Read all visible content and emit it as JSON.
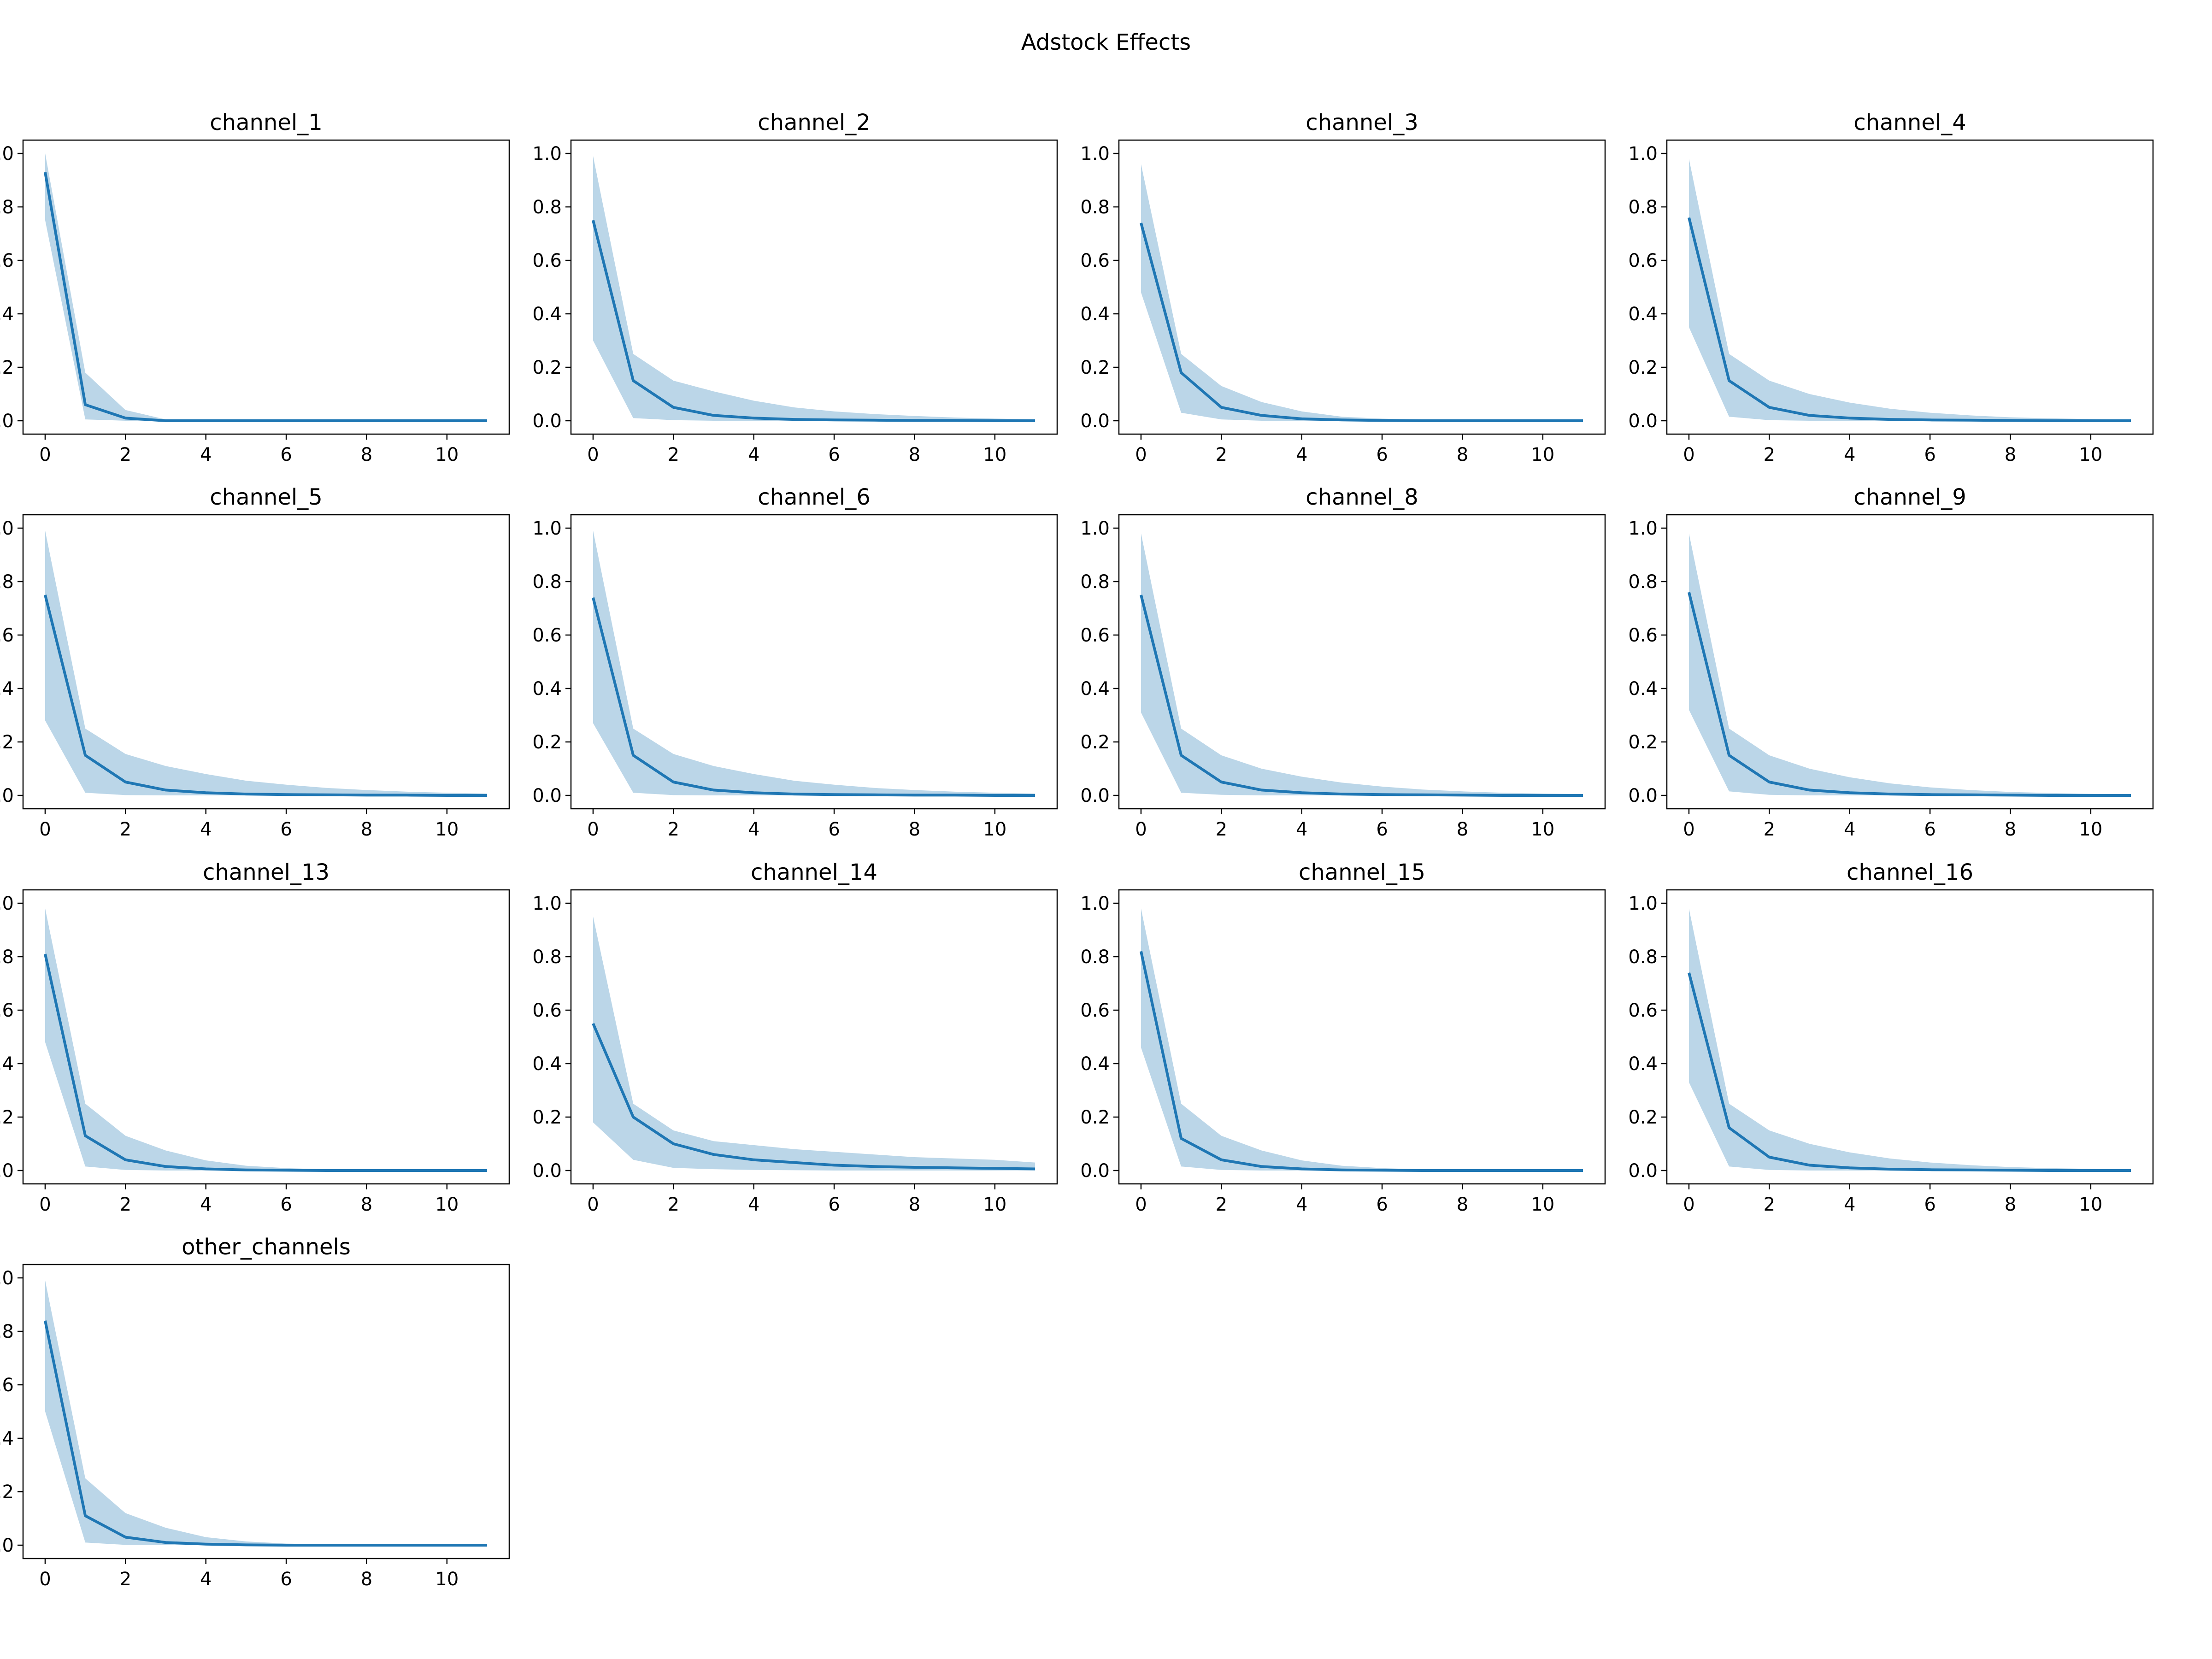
{
  "figure_title": "Adstock Effects",
  "colors": {
    "line": "#1f77b4",
    "band": "#1f77b4",
    "frame": "#000000"
  },
  "chart_data": {
    "type": "line",
    "x": [
      0,
      1,
      2,
      3,
      4,
      5,
      6,
      7,
      8,
      9,
      10,
      11
    ],
    "xticks": [
      0,
      2,
      4,
      6,
      8,
      10
    ],
    "yticks": [
      0.0,
      0.2,
      0.4,
      0.6,
      0.8,
      1.0
    ],
    "ytick_labels": [
      "0.0",
      "0.2",
      "0.4",
      "0.6",
      "0.8",
      "1.0"
    ],
    "xlim": [
      -0.55,
      11.55
    ],
    "ylim": [
      -0.05,
      1.05
    ],
    "grid": false,
    "panels": [
      {
        "title": "channel_1",
        "mean": [
          0.93,
          0.06,
          0.01,
          0.0,
          0.0,
          0.0,
          0.0,
          0.0,
          0.0,
          0.0,
          0.0,
          0.0
        ],
        "lower": [
          0.75,
          0.005,
          0.0,
          0.0,
          0.0,
          0.0,
          0.0,
          0.0,
          0.0,
          0.0,
          0.0,
          0.0
        ],
        "upper": [
          1.0,
          0.18,
          0.04,
          0.005,
          0.002,
          0.001,
          0.0,
          0.0,
          0.0,
          0.0,
          0.0,
          0.0
        ]
      },
      {
        "title": "channel_2",
        "mean": [
          0.75,
          0.15,
          0.05,
          0.02,
          0.01,
          0.005,
          0.003,
          0.002,
          0.001,
          0.001,
          0.0,
          0.0
        ],
        "lower": [
          0.3,
          0.01,
          0.002,
          0.0,
          0.0,
          0.0,
          0.0,
          0.0,
          0.0,
          0.0,
          0.0,
          0.0
        ],
        "upper": [
          0.99,
          0.25,
          0.15,
          0.11,
          0.075,
          0.05,
          0.035,
          0.025,
          0.018,
          0.012,
          0.008,
          0.005
        ]
      },
      {
        "title": "channel_3",
        "mean": [
          0.74,
          0.18,
          0.05,
          0.02,
          0.007,
          0.003,
          0.001,
          0.0,
          0.0,
          0.0,
          0.0,
          0.0
        ],
        "lower": [
          0.48,
          0.03,
          0.005,
          0.0,
          0.0,
          0.0,
          0.0,
          0.0,
          0.0,
          0.0,
          0.0,
          0.0
        ],
        "upper": [
          0.96,
          0.25,
          0.13,
          0.07,
          0.035,
          0.015,
          0.008,
          0.004,
          0.002,
          0.001,
          0.0,
          0.0
        ]
      },
      {
        "title": "channel_4",
        "mean": [
          0.76,
          0.15,
          0.05,
          0.02,
          0.01,
          0.005,
          0.003,
          0.002,
          0.001,
          0.0,
          0.0,
          0.0
        ],
        "lower": [
          0.35,
          0.015,
          0.002,
          0.0,
          0.0,
          0.0,
          0.0,
          0.0,
          0.0,
          0.0,
          0.0,
          0.0
        ],
        "upper": [
          0.98,
          0.25,
          0.15,
          0.1,
          0.068,
          0.045,
          0.03,
          0.02,
          0.013,
          0.009,
          0.006,
          0.004
        ]
      },
      {
        "title": "channel_5",
        "mean": [
          0.75,
          0.15,
          0.05,
          0.02,
          0.01,
          0.005,
          0.003,
          0.002,
          0.001,
          0.001,
          0.0,
          0.0
        ],
        "lower": [
          0.28,
          0.01,
          0.001,
          0.0,
          0.0,
          0.0,
          0.0,
          0.0,
          0.0,
          0.0,
          0.0,
          0.0
        ],
        "upper": [
          0.99,
          0.25,
          0.155,
          0.11,
          0.08,
          0.055,
          0.04,
          0.028,
          0.02,
          0.014,
          0.01,
          0.007
        ]
      },
      {
        "title": "channel_6",
        "mean": [
          0.74,
          0.15,
          0.05,
          0.02,
          0.01,
          0.005,
          0.003,
          0.002,
          0.001,
          0.001,
          0.0,
          0.0
        ],
        "lower": [
          0.27,
          0.01,
          0.001,
          0.0,
          0.0,
          0.0,
          0.0,
          0.0,
          0.0,
          0.0,
          0.0,
          0.0
        ],
        "upper": [
          0.99,
          0.25,
          0.155,
          0.11,
          0.08,
          0.055,
          0.04,
          0.028,
          0.02,
          0.014,
          0.01,
          0.007
        ]
      },
      {
        "title": "channel_8",
        "mean": [
          0.75,
          0.15,
          0.05,
          0.02,
          0.01,
          0.005,
          0.003,
          0.002,
          0.001,
          0.0,
          0.0,
          0.0
        ],
        "lower": [
          0.31,
          0.01,
          0.002,
          0.0,
          0.0,
          0.0,
          0.0,
          0.0,
          0.0,
          0.0,
          0.0,
          0.0
        ],
        "upper": [
          0.98,
          0.25,
          0.15,
          0.1,
          0.07,
          0.048,
          0.033,
          0.022,
          0.015,
          0.01,
          0.007,
          0.005
        ]
      },
      {
        "title": "channel_9",
        "mean": [
          0.76,
          0.15,
          0.05,
          0.02,
          0.01,
          0.005,
          0.003,
          0.002,
          0.001,
          0.0,
          0.0,
          0.0
        ],
        "lower": [
          0.32,
          0.015,
          0.002,
          0.0,
          0.0,
          0.0,
          0.0,
          0.0,
          0.0,
          0.0,
          0.0,
          0.0
        ],
        "upper": [
          0.98,
          0.25,
          0.15,
          0.1,
          0.068,
          0.045,
          0.03,
          0.02,
          0.013,
          0.009,
          0.006,
          0.004
        ]
      },
      {
        "title": "channel_13",
        "mean": [
          0.81,
          0.13,
          0.04,
          0.015,
          0.006,
          0.002,
          0.001,
          0.0,
          0.0,
          0.0,
          0.0,
          0.0
        ],
        "lower": [
          0.48,
          0.015,
          0.002,
          0.0,
          0.0,
          0.0,
          0.0,
          0.0,
          0.0,
          0.0,
          0.0,
          0.0
        ],
        "upper": [
          0.98,
          0.25,
          0.13,
          0.075,
          0.038,
          0.018,
          0.009,
          0.004,
          0.002,
          0.001,
          0.0,
          0.0
        ]
      },
      {
        "title": "channel_14",
        "mean": [
          0.55,
          0.2,
          0.1,
          0.06,
          0.04,
          0.03,
          0.02,
          0.015,
          0.012,
          0.01,
          0.008,
          0.006
        ],
        "lower": [
          0.18,
          0.04,
          0.01,
          0.005,
          0.002,
          0.001,
          0.0,
          0.0,
          0.0,
          0.0,
          0.0,
          0.0
        ],
        "upper": [
          0.95,
          0.25,
          0.15,
          0.11,
          0.095,
          0.08,
          0.07,
          0.06,
          0.05,
          0.045,
          0.04,
          0.03
        ]
      },
      {
        "title": "channel_15",
        "mean": [
          0.82,
          0.12,
          0.04,
          0.015,
          0.006,
          0.002,
          0.001,
          0.0,
          0.0,
          0.0,
          0.0,
          0.0
        ],
        "lower": [
          0.46,
          0.015,
          0.002,
          0.0,
          0.0,
          0.0,
          0.0,
          0.0,
          0.0,
          0.0,
          0.0,
          0.0
        ],
        "upper": [
          0.98,
          0.25,
          0.13,
          0.075,
          0.038,
          0.018,
          0.009,
          0.004,
          0.002,
          0.001,
          0.0,
          0.0
        ]
      },
      {
        "title": "channel_16",
        "mean": [
          0.74,
          0.16,
          0.05,
          0.02,
          0.01,
          0.005,
          0.003,
          0.002,
          0.001,
          0.0,
          0.0,
          0.0
        ],
        "lower": [
          0.33,
          0.015,
          0.002,
          0.0,
          0.0,
          0.0,
          0.0,
          0.0,
          0.0,
          0.0,
          0.0,
          0.0
        ],
        "upper": [
          0.98,
          0.25,
          0.15,
          0.1,
          0.068,
          0.045,
          0.03,
          0.02,
          0.013,
          0.009,
          0.006,
          0.004
        ]
      },
      {
        "title": "other_channels",
        "mean": [
          0.84,
          0.11,
          0.03,
          0.01,
          0.004,
          0.001,
          0.0,
          0.0,
          0.0,
          0.0,
          0.0,
          0.0
        ],
        "lower": [
          0.5,
          0.01,
          0.001,
          0.0,
          0.0,
          0.0,
          0.0,
          0.0,
          0.0,
          0.0,
          0.0,
          0.0
        ],
        "upper": [
          0.99,
          0.25,
          0.12,
          0.065,
          0.03,
          0.014,
          0.006,
          0.003,
          0.001,
          0.0,
          0.0,
          0.0
        ]
      }
    ]
  }
}
